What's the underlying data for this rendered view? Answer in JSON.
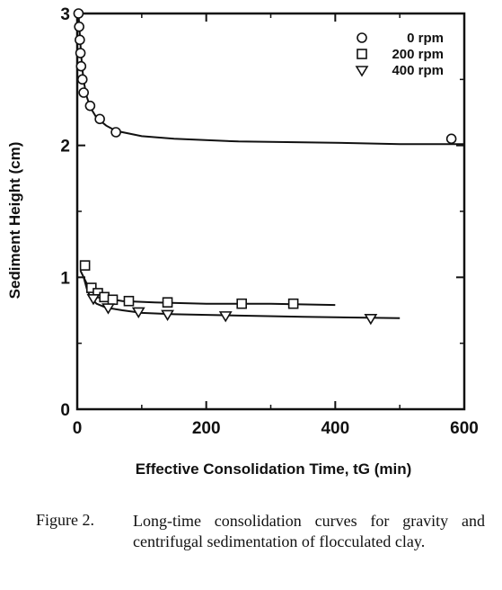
{
  "chart_data": {
    "type": "scatter",
    "xlabel": "Effective Consolidation Time, tG (min)",
    "ylabel": "Sediment Height (cm)",
    "xlim": [
      0,
      600
    ],
    "ylim": [
      0,
      3
    ],
    "xticks": [
      0,
      200,
      400,
      600
    ],
    "yticks": [
      0,
      1,
      2,
      3
    ],
    "x_tick_labels": [
      "0",
      "200",
      "400",
      "600"
    ],
    "y_tick_labels": [
      "0",
      "1",
      "2",
      "3"
    ],
    "legend_position": "top-right",
    "series": [
      {
        "name": "0 rpm",
        "marker": "circle",
        "points": [
          [
            2,
            3.0
          ],
          [
            3,
            2.9
          ],
          [
            4,
            2.8
          ],
          [
            5,
            2.7
          ],
          [
            6,
            2.6
          ],
          [
            8,
            2.5
          ],
          [
            10,
            2.4
          ],
          [
            20,
            2.3
          ],
          [
            35,
            2.2
          ],
          [
            60,
            2.1
          ],
          [
            580,
            2.05
          ]
        ],
        "curve": [
          [
            2,
            3.0
          ],
          [
            4,
            2.84
          ],
          [
            6,
            2.69
          ],
          [
            8,
            2.58
          ],
          [
            10,
            2.49
          ],
          [
            14,
            2.38
          ],
          [
            20,
            2.29
          ],
          [
            30,
            2.21
          ],
          [
            45,
            2.15
          ],
          [
            60,
            2.11
          ],
          [
            100,
            2.07
          ],
          [
            150,
            2.05
          ],
          [
            250,
            2.03
          ],
          [
            400,
            2.02
          ],
          [
            500,
            2.01
          ],
          [
            600,
            2.01
          ]
        ]
      },
      {
        "name": "200 rpm",
        "marker": "square",
        "points": [
          [
            12,
            1.09
          ],
          [
            22,
            0.92
          ],
          [
            32,
            0.88
          ],
          [
            42,
            0.85
          ],
          [
            55,
            0.83
          ],
          [
            80,
            0.82
          ],
          [
            140,
            0.81
          ],
          [
            255,
            0.8
          ],
          [
            335,
            0.8
          ]
        ],
        "curve": [
          [
            5,
            1.05
          ],
          [
            10,
            1.0
          ],
          [
            15,
            0.95
          ],
          [
            20,
            0.91
          ],
          [
            30,
            0.87
          ],
          [
            45,
            0.84
          ],
          [
            70,
            0.82
          ],
          [
            120,
            0.81
          ],
          [
            200,
            0.8
          ],
          [
            300,
            0.8
          ],
          [
            400,
            0.79
          ]
        ]
      },
      {
        "name": "400 rpm",
        "marker": "triangle-down",
        "points": [
          [
            25,
            0.84
          ],
          [
            48,
            0.77
          ],
          [
            95,
            0.74
          ],
          [
            140,
            0.72
          ],
          [
            230,
            0.71
          ],
          [
            455,
            0.69
          ]
        ],
        "curve": [
          [
            10,
            1.0
          ],
          [
            15,
            0.91
          ],
          [
            20,
            0.85
          ],
          [
            30,
            0.8
          ],
          [
            45,
            0.77
          ],
          [
            70,
            0.75
          ],
          [
            100,
            0.73
          ],
          [
            150,
            0.72
          ],
          [
            250,
            0.71
          ],
          [
            350,
            0.7
          ],
          [
            500,
            0.69
          ]
        ]
      }
    ]
  },
  "caption": {
    "label": "Figure 2.",
    "text": "Long-time consolidation curves for gravity and centrifugal sedimentation of flocculated clay."
  }
}
